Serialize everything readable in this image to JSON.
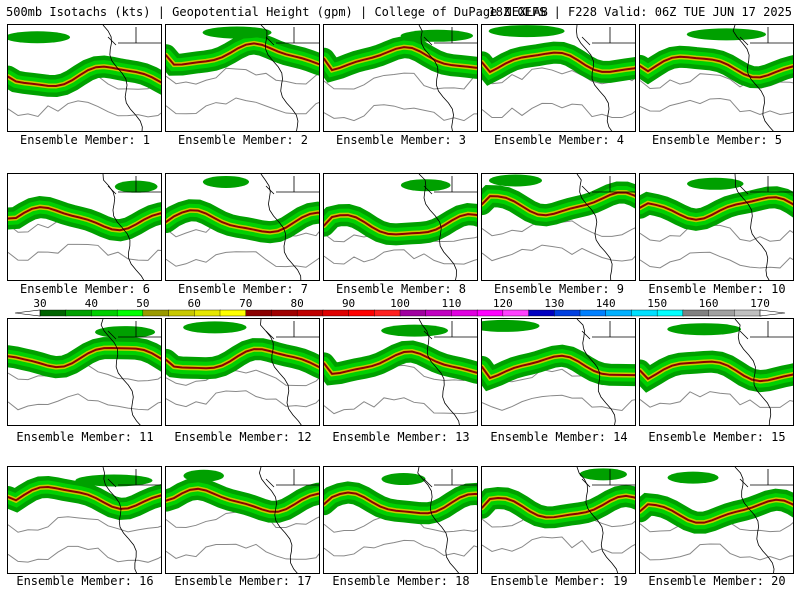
{
  "header": {
    "left": "500mb Isotachs (kts) | Geopotential Height (gpm) | College of DuPage NEXLAB",
    "right": "18Z GEFS | F228 Valid: 06Z TUE JUN 17 2025"
  },
  "members": [
    "Ensemble Member: 1",
    "Ensemble Member: 2",
    "Ensemble Member: 3",
    "Ensemble Member: 4",
    "Ensemble Member: 5",
    "Ensemble Member: 6",
    "Ensemble Member: 7",
    "Ensemble Member: 8",
    "Ensemble Member: 9",
    "Ensemble Member: 10",
    "Ensemble Member: 11",
    "Ensemble Member: 12",
    "Ensemble Member: 13",
    "Ensemble Member: 14",
    "Ensemble Member: 15",
    "Ensemble Member: 16",
    "Ensemble Member: 17",
    "Ensemble Member: 18",
    "Ensemble Member: 19",
    "Ensemble Member: 20"
  ],
  "colorbar": {
    "ticks": [
      "30",
      "40",
      "50",
      "60",
      "70",
      "80",
      "90",
      "100",
      "110",
      "120",
      "130",
      "140",
      "150",
      "160",
      "170"
    ],
    "colors": [
      "#006400",
      "#00a000",
      "#00d000",
      "#00ff00",
      "#9a9a00",
      "#c8c800",
      "#e6e600",
      "#ffff00",
      "#8b0000",
      "#a00000",
      "#c00000",
      "#e00000",
      "#ff0000",
      "#ff2020",
      "#a000a0",
      "#c000c0",
      "#e000e0",
      "#ff00ff",
      "#ff40ff",
      "#0000c0",
      "#0040e0",
      "#0080ff",
      "#00b0ff",
      "#00e0ff",
      "#00ffff",
      "#808080",
      "#a0a0a0",
      "#c0c0c0"
    ]
  }
}
